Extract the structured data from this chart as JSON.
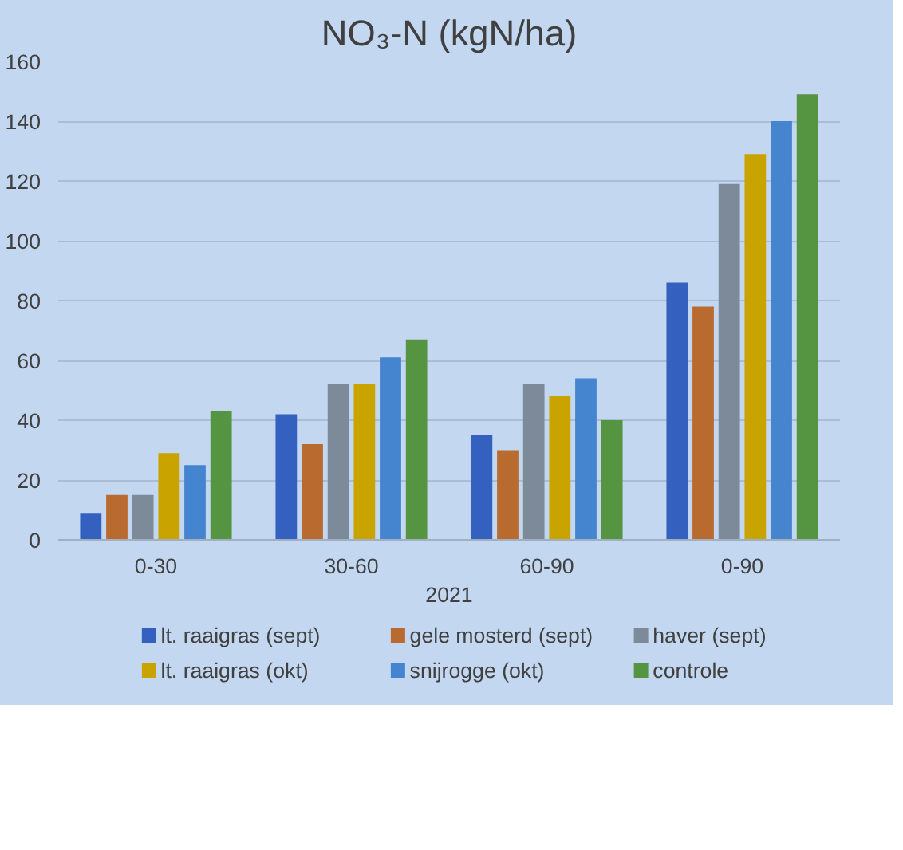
{
  "chart_data": {
    "type": "bar",
    "title": "NO₃-N (kgN/ha)",
    "xlabel": "2021",
    "categories": [
      "0-30",
      "30-60",
      "60-90",
      "0-90"
    ],
    "series": [
      {
        "name": "lt. raaigras (sept)",
        "color": "#3461bf",
        "values": [
          9,
          42,
          35,
          86
        ]
      },
      {
        "name": "gele mosterd (sept)",
        "color": "#b96a2e",
        "values": [
          15,
          32,
          30,
          78
        ]
      },
      {
        "name": "haver (sept)",
        "color": "#7c8a9a",
        "values": [
          15,
          52,
          52,
          119
        ]
      },
      {
        "name": "lt. raaigras (okt)",
        "color": "#c9a300",
        "values": [
          29,
          52,
          48,
          129
        ]
      },
      {
        "name": "snijrogge (okt)",
        "color": "#4585cf",
        "values": [
          25,
          61,
          54,
          140
        ]
      },
      {
        "name": "controle",
        "color": "#559542",
        "values": [
          43,
          67,
          40,
          149
        ]
      }
    ],
    "ylim": [
      0,
      160
    ],
    "yticks": [
      0,
      20,
      40,
      60,
      80,
      100,
      120,
      140,
      160
    ],
    "grid": "y",
    "legend": "bottom"
  }
}
